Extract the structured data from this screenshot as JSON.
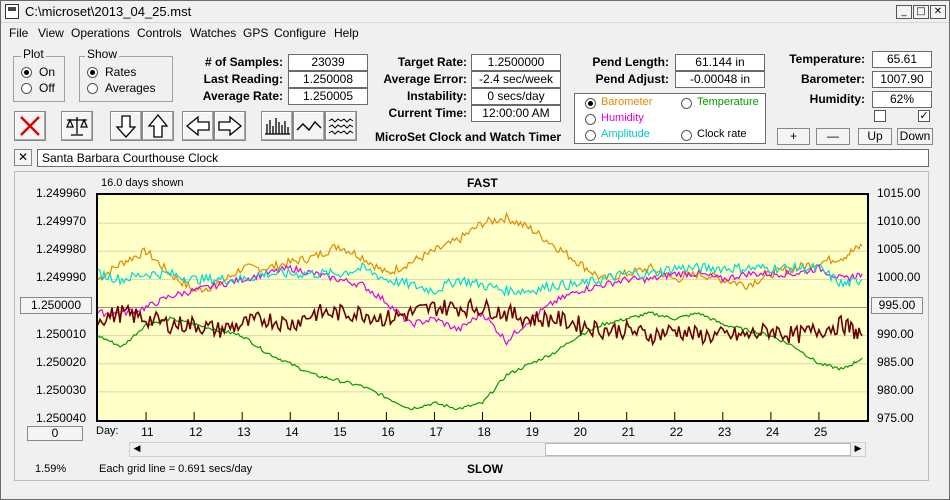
{
  "window": {
    "title": "C:\\microset\\2013_04_25.mst",
    "min": "_",
    "max": "□",
    "close": "✕"
  },
  "menu": [
    "File",
    "View",
    "Operations",
    "Controls",
    "Watches",
    "GPS",
    "Configure",
    "Help"
  ],
  "plot_group": {
    "title": "Plot",
    "on": "On",
    "off": "Off",
    "selected": "On"
  },
  "show_group": {
    "title": "Show",
    "rates": "Rates",
    "averages": "Averages",
    "selected": "Rates"
  },
  "stats": {
    "samples_label": "# of Samples:",
    "samples": "23039",
    "last_label": "Last Reading:",
    "last": "1.250008",
    "avg_label": "Average Rate:",
    "avg": "1.250005",
    "target_label": "Target Rate:",
    "target": "1.2500000",
    "err_label": "Average Error:",
    "err": "-2.4 sec/week",
    "inst_label": "Instability:",
    "inst": "0 secs/day",
    "time_label": "Current Time:",
    "time": "12:00:00 AM",
    "pend_label": "Pend Length:",
    "pend": "61.144 in",
    "adj_label": "Pend Adjust:",
    "adj": "-0.00048 in",
    "temp_label": "Temperature:",
    "temp": "65.61",
    "baro_label": "Barometer:",
    "baro": "1007.90",
    "hum_label": "Humidity:",
    "hum": "62%"
  },
  "app_caption": "MicroSet Clock and Watch Timer",
  "series_select": {
    "barometer": "Barometer",
    "temperature": "Temperature",
    "humidity": "Humidity",
    "amplitude": "Amplitude",
    "clock_rate": "Clock rate",
    "selected": "Barometer",
    "colors": {
      "barometer": "#e08a00",
      "temperature": "#009a00",
      "humidity": "#e000e0",
      "amplitude": "#00d8d8",
      "clock_rate": "#000"
    }
  },
  "scale_buttons": {
    "plus": "+",
    "minus": "—",
    "up": "Up",
    "down": "Down"
  },
  "checks": {
    "left": false,
    "right": true
  },
  "clock_name": "Santa Barbara Courthouse Clock",
  "clear_btn": "✕",
  "chart": {
    "days_shown": "16.0 days shown",
    "fast": "FAST",
    "slow": "SLOW",
    "left_btn": "1.250000",
    "left_zero": "0",
    "right_btn": "995.00",
    "percent": "1.59%",
    "grid_note": "Each grid line = 0.691 secs/day",
    "day_prefix": "Day:"
  },
  "chart_data": {
    "type": "line",
    "x_label": "Day:",
    "x_ticks": [
      "11",
      "12",
      "13",
      "14",
      "15",
      "16",
      "17",
      "18",
      "19",
      "20",
      "21",
      "22",
      "23",
      "24",
      "25"
    ],
    "xlim": [
      10.0,
      26.0
    ],
    "y_left": {
      "ticks": [
        "1.249960",
        "1.249970",
        "1.249980",
        "1.249990",
        "1.250000",
        "1.250010",
        "1.250020",
        "1.250030",
        "1.250040"
      ],
      "lim": [
        1.24996,
        1.25004
      ],
      "inverted": true
    },
    "y_right": {
      "ticks": [
        "1015.00",
        "1010.00",
        "1005.00",
        "1000.00",
        "995.00",
        "990.00",
        "985.00",
        "980.00",
        "975.00"
      ],
      "lim": [
        975,
        1015
      ]
    },
    "series": [
      {
        "key": "barometer",
        "color": "#e08a00",
        "axis": "right",
        "x": [
          10,
          10.5,
          11,
          11.5,
          12,
          12.5,
          13,
          13.5,
          14,
          14.5,
          15,
          15.5,
          16,
          16.5,
          17,
          17.5,
          18,
          18.5,
          19,
          19.5,
          20,
          20.5,
          21,
          21.5,
          22,
          22.5,
          23,
          23.5,
          24,
          24.5,
          25,
          25.5,
          25.9
        ],
        "y": [
          1000,
          1003,
          1005,
          1001,
          998,
          999,
          1002,
          1002,
          1003,
          1004,
          1006,
          1004,
          1001,
          1003,
          1005,
          1007,
          1010,
          1011,
          1009,
          1006,
          1003,
          1000,
          1001,
          1002,
          1000,
          1001,
          1000,
          999,
          1001,
          1002,
          1003,
          1004,
          1006
        ]
      },
      {
        "key": "temperature",
        "color": "#009a00",
        "axis": "right",
        "x": [
          10,
          10.5,
          11,
          11.5,
          12,
          12.5,
          13,
          13.5,
          14,
          14.5,
          15,
          15.5,
          16,
          16.5,
          17,
          17.5,
          18,
          18.5,
          19,
          19.5,
          20,
          20.5,
          21,
          21.5,
          22,
          22.5,
          23,
          23.5,
          24,
          24.5,
          25,
          25.5,
          25.9
        ],
        "y": [
          990,
          988,
          992,
          993,
          992,
          991,
          990,
          987,
          985,
          983,
          982,
          981,
          979,
          977,
          978,
          977,
          978,
          983,
          985,
          987,
          990,
          992,
          993,
          994,
          993,
          994,
          992,
          991,
          990,
          988,
          985,
          984,
          986
        ]
      },
      {
        "key": "humidity",
        "color": "#e000e0",
        "axis": "right",
        "x": [
          10,
          10.5,
          11,
          11.5,
          12,
          12.5,
          13,
          13.5,
          14,
          14.5,
          15,
          15.5,
          16,
          16.5,
          17,
          17.5,
          18,
          18.5,
          19,
          19.5,
          20,
          20.5,
          21,
          21.5,
          22,
          22.5,
          23,
          23.5,
          24,
          24.5,
          25,
          25.5,
          25.9
        ],
        "y": [
          994,
          994,
          995,
          997,
          998,
          999,
          1000,
          1001,
          1002,
          1001,
          1000,
          999,
          996,
          992,
          993,
          991,
          994,
          989,
          993,
          996,
          998,
          999,
          1000,
          1000,
          1001,
          1001,
          1000,
          1001,
          1001,
          1001,
          1002,
          1000,
          1001
        ]
      },
      {
        "key": "amplitude",
        "color": "#00d8d8",
        "axis": "right",
        "x": [
          10,
          10.5,
          11,
          11.5,
          12,
          12.5,
          13,
          13.5,
          14,
          14.5,
          15,
          15.5,
          16,
          16.5,
          17,
          17.5,
          18,
          18.5,
          19,
          19.5,
          20,
          20.5,
          21,
          21.5,
          22,
          22.5,
          23,
          23.5,
          24,
          24.5,
          25,
          25.5,
          25.9
        ],
        "y": [
          1001,
          1000,
          1001,
          1001,
          1000,
          1000,
          1000,
          1001,
          1001,
          1001,
          1001,
          1002,
          1000,
          999,
          998,
          1000,
          999,
          998,
          998,
          999,
          999,
          1000,
          1001,
          1001,
          1002,
          1002,
          1002,
          1002,
          1002,
          1002,
          1002,
          999,
          1000
        ]
      },
      {
        "key": "clock_rate",
        "color": "#6b0000",
        "axis": "right",
        "x": [
          10,
          10.5,
          11,
          11.5,
          12,
          12.5,
          13,
          13.5,
          14,
          14.5,
          15,
          15.5,
          16,
          16.5,
          17,
          17.5,
          18,
          18.5,
          19,
          19.5,
          20,
          20.5,
          21,
          21.5,
          22,
          22.5,
          23,
          23.5,
          24,
          24.5,
          25,
          25.5,
          25.9
        ],
        "y": [
          993,
          994,
          993,
          992,
          992,
          991,
          992,
          993,
          992,
          994,
          994,
          994,
          993,
          994,
          995,
          995,
          995,
          994,
          993,
          993,
          992,
          991,
          991,
          990,
          991,
          990,
          990,
          990,
          991,
          990,
          991,
          992,
          990
        ]
      }
    ]
  }
}
